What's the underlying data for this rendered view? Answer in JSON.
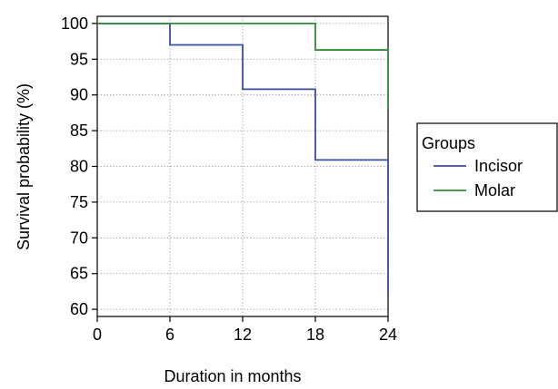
{
  "chart_data": {
    "type": "line",
    "step": true,
    "title": "",
    "xlabel": "Duration in months",
    "ylabel": "Survival probability (%)",
    "xlim": [
      0,
      24
    ],
    "ylim": [
      59,
      101
    ],
    "x_ticks": [
      0,
      6,
      12,
      18,
      24
    ],
    "y_ticks": [
      60,
      65,
      70,
      75,
      80,
      85,
      90,
      95,
      100
    ],
    "grid": true,
    "legend_title": "Groups",
    "legend_position": "right",
    "series": [
      {
        "name": "Incisor",
        "color": "#3a4fa0",
        "x": [
          0,
          6,
          6,
          12,
          12,
          18,
          18,
          24,
          24
        ],
        "y": [
          100,
          100,
          97,
          97,
          90.8,
          90.8,
          80.9,
          80.9,
          62
        ]
      },
      {
        "name": "Molar",
        "color": "#2e8b3a",
        "x": [
          0,
          18,
          18,
          24,
          24
        ],
        "y": [
          100,
          100,
          96.3,
          96.3,
          88
        ]
      }
    ]
  }
}
